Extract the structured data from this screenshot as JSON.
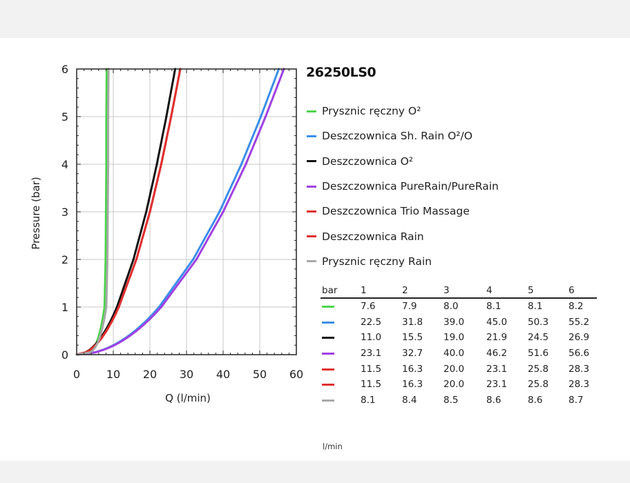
{
  "chart_data": {
    "type": "line",
    "title": "26250LS0",
    "xlabel": "Q (l/min)",
    "ylabel": "Pressure (bar)",
    "xlim": [
      0,
      60
    ],
    "ylim": [
      0,
      6
    ],
    "x_ticks": [
      "0",
      "10",
      "20",
      "30",
      "40",
      "50",
      "60"
    ],
    "y_ticks": [
      "0",
      "1",
      "2",
      "3",
      "4",
      "5",
      "6"
    ],
    "grid": true,
    "legend_position": "right",
    "table_header_label": "bar",
    "table_unit_label": "l/min",
    "pressure_columns": [
      "1",
      "2",
      "3",
      "4",
      "5",
      "6"
    ],
    "pressure_values": [
      1,
      2,
      3,
      4,
      5,
      6
    ],
    "series": [
      {
        "name": "Prysznic ręczny O²",
        "color": "#4cd44c",
        "values": [
          7.6,
          7.9,
          8.0,
          8.1,
          8.1,
          8.2
        ],
        "display": [
          "7.6",
          "7.9",
          "8.0",
          "8.1",
          "8.1",
          "8.2"
        ]
      },
      {
        "name": "Deszczownica Sh. Rain O²/O",
        "color": "#3b8ee8",
        "values": [
          22.5,
          31.8,
          39.0,
          45.0,
          50.3,
          55.2
        ],
        "display": [
          "22.5",
          "31.8",
          "39.0",
          "45.0",
          "50.3",
          "55.2"
        ]
      },
      {
        "name": "Deszczownica O²",
        "color": "#111111",
        "values": [
          11.0,
          15.5,
          19.0,
          21.9,
          24.5,
          26.9
        ],
        "display": [
          "11.0",
          "15.5",
          "19.0",
          "21.9",
          "24.5",
          "26.9"
        ]
      },
      {
        "name": "Deszczownica PureRain/PureRain",
        "color": "#a040e0",
        "values": [
          23.1,
          32.7,
          40.0,
          46.2,
          51.6,
          56.6
        ],
        "display": [
          "23.1",
          "32.7",
          "40.0",
          "46.2",
          "51.6",
          "56.6"
        ]
      },
      {
        "name": "Deszczownica Trio Massage",
        "color": "#e03030",
        "values": [
          11.5,
          16.3,
          20.0,
          23.1,
          25.8,
          28.3
        ],
        "display": [
          "11.5",
          "16.3",
          "20.0",
          "23.1",
          "25.8",
          "28.3"
        ]
      },
      {
        "name": "Deszczownica Rain",
        "color": "#e03030",
        "values": [
          11.5,
          16.3,
          20.0,
          23.1,
          25.8,
          28.3
        ],
        "display": [
          "11.5",
          "16.3",
          "20.0",
          "23.1",
          "25.8",
          "28.3"
        ]
      },
      {
        "name": "Prysznic ręczny Rain",
        "color": "#a8a8a8",
        "values": [
          8.1,
          8.4,
          8.5,
          8.6,
          8.6,
          8.7
        ],
        "display": [
          "8.1",
          "8.4",
          "8.5",
          "8.6",
          "8.6",
          "8.7"
        ]
      }
    ]
  }
}
